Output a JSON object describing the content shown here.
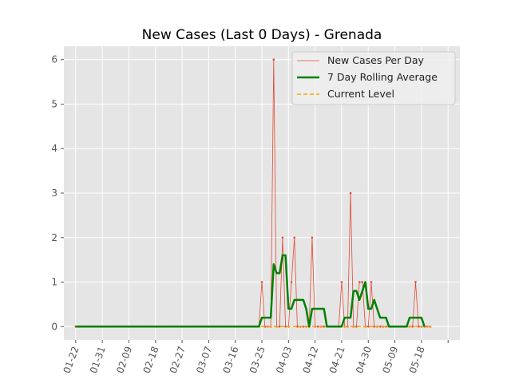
{
  "chart_data": {
    "type": "line",
    "title": "New Cases (Last 0 Days) - Grenada",
    "xlabel": "",
    "ylabel": "",
    "x_start": "2020-01-22",
    "x_end": "2020-05-22",
    "xlim": [
      "2020-01-18",
      "2020-05-31"
    ],
    "ylim": [
      -0.3,
      6.3
    ],
    "x_ticks": [
      {
        "date": "2020-01-22",
        "label": "01-22"
      },
      {
        "date": "2020-01-31",
        "label": "01-31"
      },
      {
        "date": "2020-02-09",
        "label": "02-09"
      },
      {
        "date": "2020-02-18",
        "label": "02-18"
      },
      {
        "date": "2020-02-27",
        "label": "02-27"
      },
      {
        "date": "2020-03-07",
        "label": "03-07"
      },
      {
        "date": "2020-03-16",
        "label": "03-16"
      },
      {
        "date": "2020-03-25",
        "label": "03-25"
      },
      {
        "date": "2020-04-03",
        "label": "04-03"
      },
      {
        "date": "2020-04-12",
        "label": "04-12"
      },
      {
        "date": "2020-04-21",
        "label": "04-21"
      },
      {
        "date": "2020-04-30",
        "label": "04-30"
      },
      {
        "date": "2020-05-09",
        "label": "05-09"
      },
      {
        "date": "2020-05-18",
        "label": "05-18"
      },
      {
        "date": "2020-05-27",
        "label": ""
      }
    ],
    "y_ticks": [
      0,
      1,
      2,
      3,
      4,
      5,
      6
    ],
    "series": [
      {
        "name": "New Cases Per Day",
        "color": "#e24a33",
        "style": "line-with-markers",
        "values": [
          0,
          0,
          0,
          0,
          0,
          0,
          0,
          0,
          0,
          0,
          0,
          0,
          0,
          0,
          0,
          0,
          0,
          0,
          0,
          0,
          0,
          0,
          0,
          0,
          0,
          0,
          0,
          0,
          0,
          0,
          0,
          0,
          0,
          0,
          0,
          0,
          0,
          0,
          0,
          0,
          0,
          0,
          0,
          0,
          0,
          0,
          0,
          0,
          0,
          0,
          0,
          0,
          0,
          0,
          0,
          0,
          0,
          0,
          0,
          0,
          0,
          0,
          0,
          1,
          0,
          0,
          0,
          6,
          0,
          0,
          2,
          0,
          0,
          1,
          2,
          0,
          0,
          0,
          0,
          0,
          2,
          0,
          0,
          0,
          0,
          0,
          0,
          0,
          0,
          0,
          1,
          0,
          0,
          3,
          0,
          0,
          1,
          1,
          0,
          0,
          1,
          0,
          0,
          0,
          0,
          0,
          0,
          0,
          0,
          0,
          0,
          0,
          0,
          0,
          0,
          1,
          0,
          0,
          0,
          0,
          0
        ]
      },
      {
        "name": "7 Day Rolling Average",
        "color": "#008000",
        "style": "thick-line",
        "values": [
          0,
          0,
          0,
          0,
          0,
          0,
          0,
          0,
          0,
          0,
          0,
          0,
          0,
          0,
          0,
          0,
          0,
          0,
          0,
          0,
          0,
          0,
          0,
          0,
          0,
          0,
          0,
          0,
          0,
          0,
          0,
          0,
          0,
          0,
          0,
          0,
          0,
          0,
          0,
          0,
          0,
          0,
          0,
          0,
          0,
          0,
          0,
          0,
          0,
          0,
          0,
          0,
          0,
          0,
          0,
          0,
          0,
          0,
          0,
          0,
          0,
          0,
          0,
          0.2,
          0.2,
          0.2,
          0.2,
          1.4,
          1.2,
          1.2,
          1.6,
          1.6,
          0.4,
          0.4,
          0.6,
          0.6,
          0.6,
          0.6,
          0.4,
          0,
          0.4,
          0.4,
          0.4,
          0.4,
          0.4,
          0,
          0,
          0,
          0,
          0,
          0,
          0.2,
          0.2,
          0.2,
          0.8,
          0.8,
          0.6,
          0.8,
          1.0,
          0.4,
          0.4,
          0.6,
          0.4,
          0.2,
          0.2,
          0.2,
          0,
          0,
          0,
          0,
          0,
          0,
          0,
          0.2,
          0.2,
          0.2,
          0.2,
          0.2,
          0
        ]
      },
      {
        "name": "Current Level",
        "color": "#ffa500",
        "style": "dashed",
        "values": [
          0,
          0
        ],
        "dates": [
          "2020-01-22",
          "2020-05-22"
        ]
      }
    ],
    "grid": true,
    "legend_position": "top-right"
  }
}
